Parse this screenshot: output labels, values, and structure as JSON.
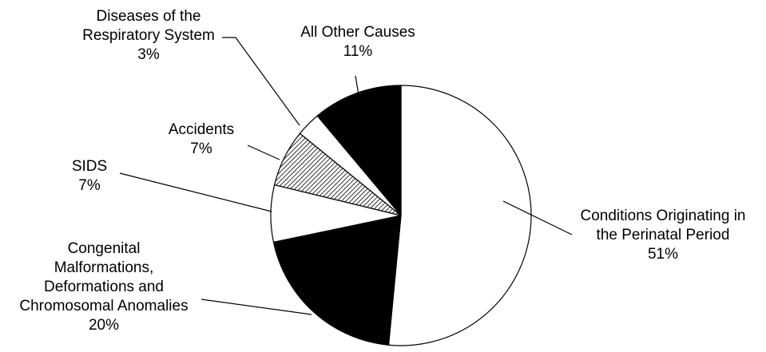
{
  "chart_data": {
    "type": "pie",
    "title": "",
    "legend": "none",
    "start_angle_deg": 0,
    "direction": "clockwise-from-12-oclock",
    "slices": [
      {
        "label_lines": [
          "Conditions Originating in",
          "the Perinatal Period"
        ],
        "value_label": "51%",
        "value": 51,
        "fill": "#ffffff",
        "pattern": "none"
      },
      {
        "label_lines": [
          "Congenital",
          "Malformations,",
          "Deformations and",
          "Chromosomal Anomalies"
        ],
        "value_label": "20%",
        "value": 20,
        "fill": "#000000",
        "pattern": "none"
      },
      {
        "label_lines": [
          "SIDS"
        ],
        "value_label": "7%",
        "value": 7,
        "fill": "#ffffff",
        "pattern": "none"
      },
      {
        "label_lines": [
          "Accidents"
        ],
        "value_label": "7%",
        "value": 7,
        "fill": "#ffffff",
        "pattern": "diagonal-hatch"
      },
      {
        "label_lines": [
          "Diseases of the",
          "Respiratory System"
        ],
        "value_label": "3%",
        "value": 3,
        "fill": "#ffffff",
        "pattern": "none"
      },
      {
        "label_lines": [
          "All Other Causes"
        ],
        "value_label": "11%",
        "value": 11,
        "fill": "#000000",
        "pattern": "none"
      }
    ]
  }
}
